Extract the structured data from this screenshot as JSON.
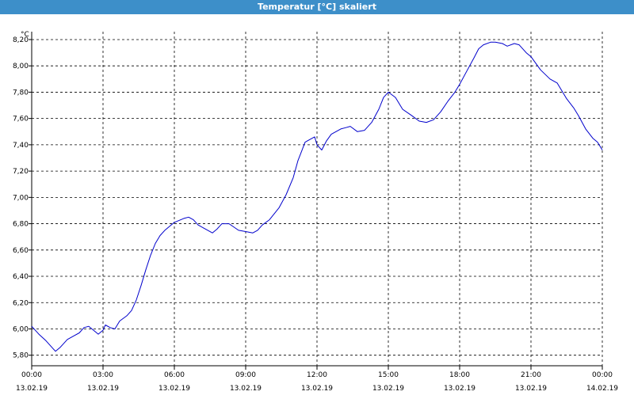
{
  "window": {
    "title": "Temperatur [°C] skaliert"
  },
  "chart_data": {
    "type": "line",
    "title": "Temperatur [°C] skaliert",
    "ylabel": "°C",
    "xlabel": "",
    "ylim": [
      5.72,
      8.26
    ],
    "xlim_hours": [
      0,
      24
    ],
    "grid": true,
    "y_ticks": [
      "5,80",
      "6,00",
      "6,20",
      "6,40",
      "6,60",
      "6,80",
      "7,00",
      "7,20",
      "7,40",
      "7,60",
      "7,80",
      "8,00",
      "8,20"
    ],
    "x_ticks": [
      {
        "time": "00:00",
        "date": "13.02.19"
      },
      {
        "time": "03:00",
        "date": "13.02.19"
      },
      {
        "time": "06:00",
        "date": "13.02.19"
      },
      {
        "time": "09:00",
        "date": "13.02.19"
      },
      {
        "time": "12:00",
        "date": "13.02.19"
      },
      {
        "time": "15:00",
        "date": "13.02.19"
      },
      {
        "time": "18:00",
        "date": "13.02.19"
      },
      {
        "time": "21:00",
        "date": "13.02.19"
      },
      {
        "time": "00:00",
        "date": "14.02.19"
      }
    ],
    "series": [
      {
        "color": "#0000cc",
        "x_hours": [
          0.0,
          0.3,
          0.6,
          0.9,
          1.0,
          1.2,
          1.5,
          1.8,
          2.0,
          2.2,
          2.4,
          2.6,
          2.8,
          3.0,
          3.1,
          3.3,
          3.5,
          3.7,
          4.0,
          4.2,
          4.4,
          4.6,
          4.8,
          5.0,
          5.2,
          5.4,
          5.6,
          6.0,
          6.4,
          6.6,
          6.8,
          7.0,
          7.3,
          7.6,
          7.8,
          8.0,
          8.3,
          8.7,
          9.0,
          9.3,
          9.5,
          9.7,
          10.0,
          10.4,
          10.7,
          11.0,
          11.2,
          11.5,
          11.7,
          11.9,
          12.0,
          12.2,
          12.4,
          12.6,
          13.0,
          13.2,
          13.4,
          13.7,
          14.0,
          14.3,
          14.6,
          14.8,
          15.0,
          15.3,
          15.6,
          16.0,
          16.3,
          16.6,
          16.9,
          17.2,
          17.5,
          17.8,
          18.0,
          18.3,
          18.6,
          18.8,
          19.0,
          19.3,
          19.5,
          19.8,
          20.0,
          20.3,
          20.5,
          20.8,
          21.0,
          21.4,
          21.8,
          22.1,
          22.5,
          22.8,
          23.0,
          23.3,
          23.6,
          23.8,
          24.0
        ],
        "values": [
          6.02,
          5.96,
          5.91,
          5.85,
          5.83,
          5.86,
          5.92,
          5.95,
          5.97,
          6.01,
          6.02,
          5.99,
          5.96,
          5.99,
          6.03,
          6.01,
          6.0,
          6.06,
          6.1,
          6.14,
          6.22,
          6.33,
          6.45,
          6.56,
          6.65,
          6.71,
          6.75,
          6.81,
          6.84,
          6.85,
          6.83,
          6.79,
          6.76,
          6.73,
          6.76,
          6.8,
          6.8,
          6.75,
          6.74,
          6.73,
          6.75,
          6.79,
          6.83,
          6.92,
          7.02,
          7.15,
          7.28,
          7.42,
          7.44,
          7.46,
          7.4,
          7.36,
          7.43,
          7.48,
          7.52,
          7.53,
          7.54,
          7.5,
          7.51,
          7.57,
          7.67,
          7.76,
          7.8,
          7.76,
          7.67,
          7.62,
          7.58,
          7.57,
          7.59,
          7.65,
          7.73,
          7.8,
          7.86,
          7.96,
          8.06,
          8.13,
          8.16,
          8.18,
          8.18,
          8.17,
          8.15,
          8.17,
          8.16,
          8.1,
          8.07,
          7.97,
          7.9,
          7.87,
          7.75,
          7.68,
          7.62,
          7.52,
          7.45,
          7.42,
          7.36
        ]
      }
    ]
  }
}
